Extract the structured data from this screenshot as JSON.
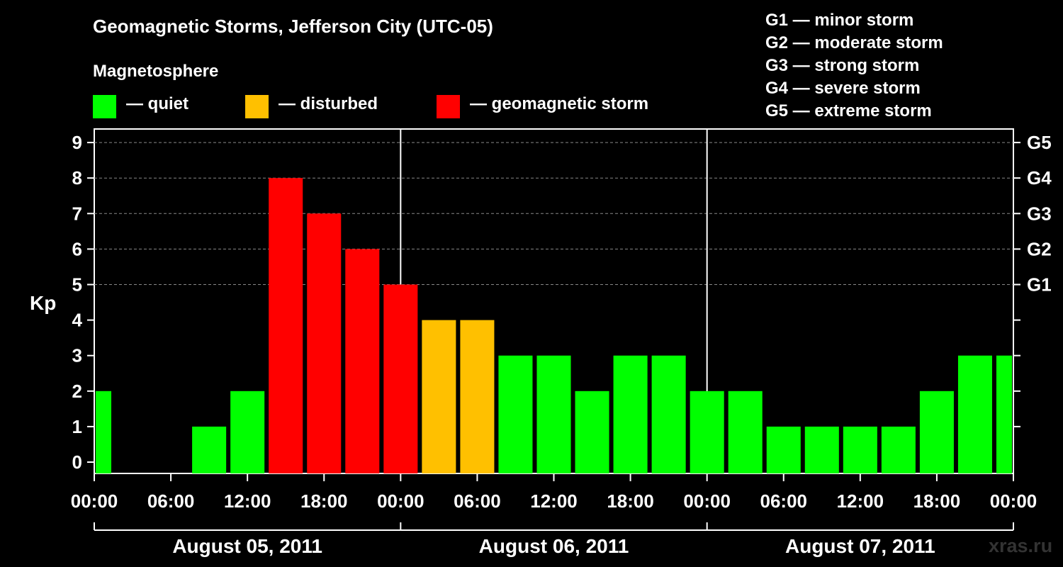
{
  "title": "Geomagnetic Storms, Jefferson City (UTC-05)",
  "subtitle": "Magnetosphere",
  "legend": [
    {
      "label": "— quiet",
      "color": "#00ff00"
    },
    {
      "label": "— disturbed",
      "color": "#ffc000"
    },
    {
      "label": "— geomagnetic storm",
      "color": "#ff0000"
    }
  ],
  "g_legend": [
    "G1 — minor storm",
    "G2 — moderate storm",
    "G3 — strong storm",
    "G4 — severe storm",
    "G5 — extreme storm"
  ],
  "credit": "xras.ru",
  "chart_data": {
    "type": "bar",
    "ylabel": "Kp",
    "ylim": [
      0,
      9
    ],
    "y_ticks": [
      0,
      1,
      2,
      3,
      4,
      5,
      6,
      7,
      8,
      9
    ],
    "right_ticks": [
      {
        "kp": 5,
        "label": "G1"
      },
      {
        "kp": 6,
        "label": "G2"
      },
      {
        "kp": 7,
        "label": "G3"
      },
      {
        "kp": 8,
        "label": "G4"
      },
      {
        "kp": 9,
        "label": "G5"
      }
    ],
    "x_tick_labels": [
      "00:00",
      "06:00",
      "12:00",
      "18:00",
      "00:00",
      "06:00",
      "12:00",
      "18:00",
      "00:00",
      "06:00",
      "12:00",
      "18:00",
      "00:00"
    ],
    "days": [
      "August 05, 2011",
      "August 06, 2011",
      "August 07, 2011"
    ],
    "interval_hours": 3,
    "values": [
      2,
      0,
      0,
      1,
      2,
      8,
      7,
      6,
      5,
      4,
      4,
      3,
      3,
      2,
      3,
      3,
      2,
      2,
      1,
      1,
      1,
      1,
      2,
      3,
      3
    ],
    "thresholds": {
      "quiet_max": 3,
      "disturbed_max": 4
    },
    "colors": {
      "quiet": "#00ff00",
      "disturbed": "#ffc000",
      "storm": "#ff0000"
    },
    "grid": true
  }
}
